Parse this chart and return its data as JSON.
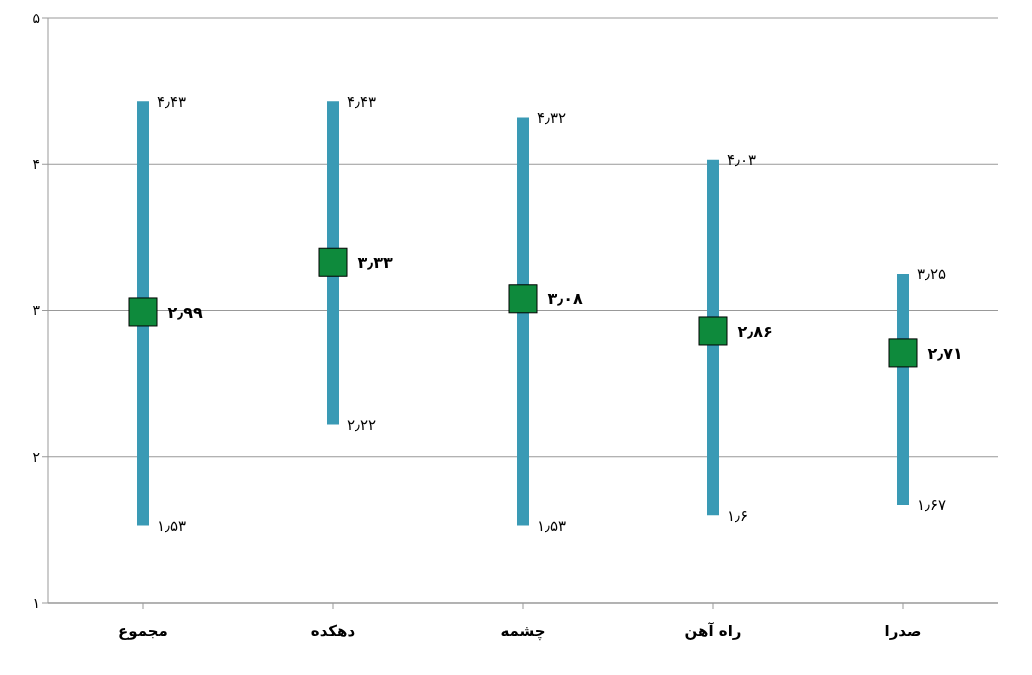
{
  "chart_data": {
    "type": "bar",
    "categories": [
      "مجموع",
      "دهکده",
      "چشمه",
      "راه آهن",
      "صدرا"
    ],
    "series": [
      {
        "color": "#3a9ab5",
        "base": [
          1.53,
          2.22,
          1.53,
          1.6,
          1.67
        ],
        "values": [
          2.9,
          2.21,
          2.79,
          2.43,
          1.58
        ]
      },
      {
        "type": "scatter",
        "color": "#0e8a3c",
        "marker": "square",
        "values": [
          2.99,
          3.33,
          3.08,
          2.86,
          2.71
        ],
        "value_labels": [
          "۲٫۹۹",
          "۳٫۳۳",
          "۳٫۰۸",
          "۲٫۸۶",
          "۲٫۷۱"
        ]
      }
    ],
    "annotations": [
      {
        "text": "۴٫۴۳",
        "x": "مجموع",
        "y": 4.43
      },
      {
        "text": "۱٫۵۳",
        "x": "مجموع",
        "y": 1.53
      },
      {
        "text": "۴٫۴۳",
        "x": "دهکده",
        "y": 4.43
      },
      {
        "text": "۲٫۲۲",
        "x": "دهکده",
        "y": 2.22
      },
      {
        "text": "۴٫۳۲",
        "x": "چشمه",
        "y": 4.32
      },
      {
        "text": "۱٫۵۳",
        "x": "چشمه",
        "y": 1.53
      },
      {
        "text": "۴٫۰۳",
        "x": "راه آهن",
        "y": 4.03
      },
      {
        "text": "۱٫۶",
        "x": "راه آهن",
        "y": 1.6
      },
      {
        "text": "۳٫۲۵",
        "x": "صدرا",
        "y": 3.25
      },
      {
        "text": "۱٫۶۷",
        "x": "صدرا",
        "y": 1.67
      }
    ],
    "ylim": [
      1,
      5
    ],
    "yticks": [
      {
        "value": 1,
        "label": "۱"
      },
      {
        "value": 2,
        "label": "۲"
      },
      {
        "value": 3,
        "label": "۳"
      },
      {
        "value": 4,
        "label": "۴"
      },
      {
        "value": 5,
        "label": "۵"
      }
    ],
    "grid": "y"
  }
}
